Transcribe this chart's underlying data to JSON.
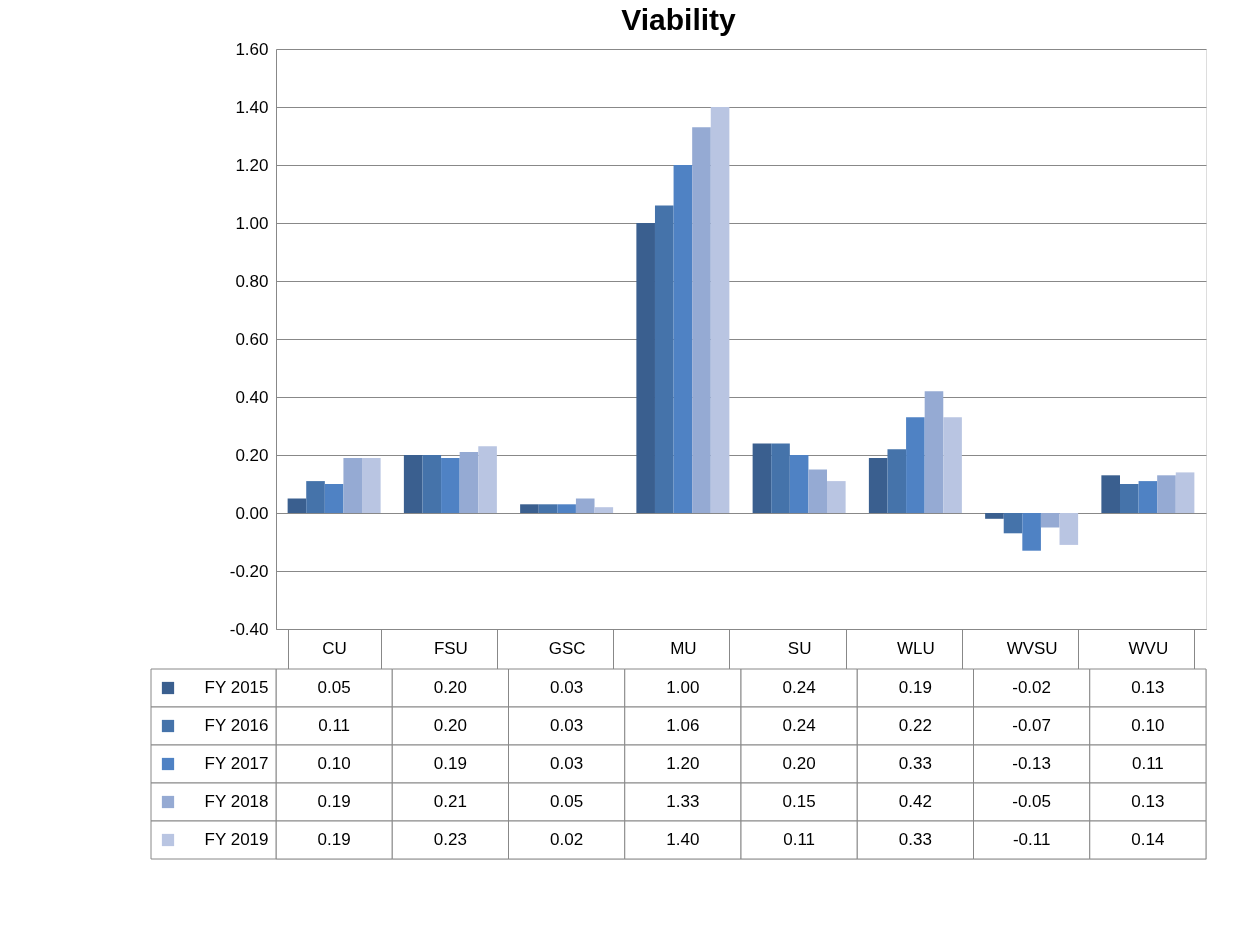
{
  "chart_data": {
    "type": "bar",
    "title": "Viability",
    "categories": [
      "CU",
      "FSU",
      "GSC",
      "MU",
      "SU",
      "WLU",
      "WVSU",
      "WVU"
    ],
    "series": [
      {
        "name": "FY 2015",
        "color": "#3a5f8f",
        "values": [
          0.05,
          0.2,
          0.03,
          1.0,
          0.24,
          0.19,
          -0.02,
          0.13
        ],
        "value_labels": [
          "0.05",
          "0.20",
          "0.03",
          "1.00",
          "0.24",
          "0.19",
          "-0.02",
          "0.13"
        ]
      },
      {
        "name": "FY 2016",
        "color": "#4573aa",
        "values": [
          0.11,
          0.2,
          0.03,
          1.06,
          0.24,
          0.22,
          -0.07,
          0.1
        ],
        "value_labels": [
          "0.11",
          "0.20",
          "0.03",
          "1.06",
          "0.24",
          "0.22",
          "-0.07",
          "0.10"
        ]
      },
      {
        "name": "FY 2017",
        "color": "#4f82c4",
        "values": [
          0.1,
          0.19,
          0.03,
          1.2,
          0.2,
          0.33,
          -0.13,
          0.11
        ],
        "value_labels": [
          "0.10",
          "0.19",
          "0.03",
          "1.20",
          "0.20",
          "0.33",
          "-0.13",
          "0.11"
        ]
      },
      {
        "name": "FY 2018",
        "color": "#95aad3",
        "values": [
          0.19,
          0.21,
          0.05,
          1.33,
          0.15,
          0.42,
          -0.05,
          0.13
        ],
        "value_labels": [
          "0.19",
          "0.21",
          "0.05",
          "1.33",
          "0.15",
          "0.42",
          "-0.05",
          "0.13"
        ]
      },
      {
        "name": "FY 2019",
        "color": "#b9c5e2",
        "values": [
          0.19,
          0.23,
          0.02,
          1.4,
          0.11,
          0.33,
          -0.11,
          0.14
        ],
        "value_labels": [
          "0.19",
          "0.23",
          "0.02",
          "1.40",
          "0.11",
          "0.33",
          "-0.11",
          "0.14"
        ]
      }
    ],
    "ylim": [
      -0.4,
      1.6
    ],
    "yticks": [
      {
        "value": -0.4,
        "label": "-0.40"
      },
      {
        "value": -0.2,
        "label": "-0.20"
      },
      {
        "value": 0,
        "label": "0.00"
      },
      {
        "value": 0.2,
        "label": "0.20"
      },
      {
        "value": 0.4,
        "label": "0.40"
      },
      {
        "value": 0.6,
        "label": "0.60"
      },
      {
        "value": 0.8,
        "label": "0.80"
      },
      {
        "value": 1.0,
        "label": "1.00"
      },
      {
        "value": 1.2,
        "label": "1.20"
      },
      {
        "value": 1.4,
        "label": "1.40"
      },
      {
        "value": 1.6,
        "label": "1.60"
      }
    ],
    "grid": "y",
    "legend": "bottom"
  }
}
